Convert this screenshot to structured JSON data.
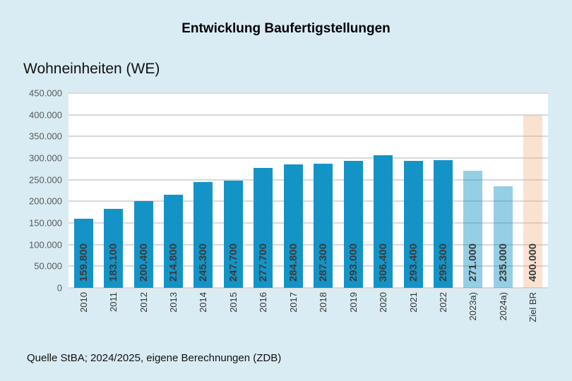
{
  "title": "Entwicklung Baufertigstellungen",
  "subtitle": "Wohneinheiten (WE)",
  "source": "Quelle StBA; 2024/2025,  eigene Berechnungen (ZDB)",
  "colors": {
    "background": "#d9ecf3",
    "plot_background": "#ffffff",
    "gridline": "#d9d9d9",
    "axis_text": "#595959",
    "bar_label_text": "#3b3b3b",
    "bar_actual": "#1494c6",
    "bar_forecast": "rgba(20,148,198,0.45)",
    "bar_target": "rgba(242,172,122,0.35)",
    "bar_actual_hex": "#1494c6",
    "bar_forecast_hex": "#98cfe6",
    "bar_target_hex": "#fae4d5"
  },
  "chart_data": {
    "type": "bar",
    "title": "Entwicklung Baufertigstellungen",
    "ylabel": "Wohneinheiten (WE)",
    "xlabel": "",
    "grid": true,
    "legend": "none",
    "ylim": [
      0,
      450000
    ],
    "ytick_values": [
      0,
      50000,
      100000,
      150000,
      200000,
      250000,
      300000,
      350000,
      400000,
      450000
    ],
    "ytick_labels": [
      "0",
      "50.000",
      "100.000",
      "150.000",
      "200.000",
      "250.000",
      "300.000",
      "350.000",
      "400.000",
      "450.000"
    ],
    "categories": [
      "2010",
      "2011",
      "2012",
      "2013",
      "2014",
      "2015",
      "2016",
      "2017",
      "2018",
      "2019",
      "2020",
      "2021",
      "2022",
      "2023a)",
      "2024a)",
      "Ziel BR"
    ],
    "values": [
      159800,
      183100,
      200400,
      214800,
      245300,
      247700,
      277700,
      284800,
      287300,
      293000,
      306400,
      293400,
      295300,
      271000,
      235000,
      400000
    ],
    "value_labels": [
      "159.800",
      "183.100",
      "200.400",
      "214.800",
      "245.300",
      "247.700",
      "277.700",
      "284.800",
      "287.300",
      "293.000",
      "306.400",
      "293.400",
      "295.300",
      "271.000",
      "235.000",
      "400.000"
    ],
    "bar_types": [
      "actual",
      "actual",
      "actual",
      "actual",
      "actual",
      "actual",
      "actual",
      "actual",
      "actual",
      "actual",
      "actual",
      "actual",
      "actual",
      "forecast",
      "forecast",
      "target"
    ]
  }
}
